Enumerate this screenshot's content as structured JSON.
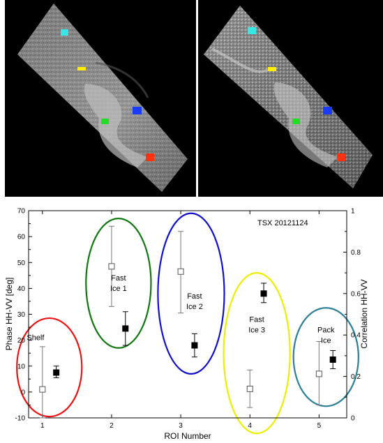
{
  "images": {
    "left_panel": {
      "description_icon": "sar-image-hh",
      "rois": [
        {
          "color": "#39e6e6"
        },
        {
          "color": "#ffee00"
        },
        {
          "color": "#1a3cff"
        },
        {
          "color": "#22dd22"
        },
        {
          "color": "#ff3311"
        }
      ]
    },
    "right_panel": {
      "description_icon": "sar-image-vv",
      "rois": [
        {
          "color": "#39e6e6"
        },
        {
          "color": "#ffee00"
        },
        {
          "color": "#1a3cff"
        },
        {
          "color": "#22dd22"
        },
        {
          "color": "#ff3311"
        }
      ]
    }
  },
  "chart_data": {
    "type": "scatter",
    "title": "TSX 20121124",
    "xlabel": "ROI Number",
    "ylabel": "Phase HH-VV [deg]",
    "y2label": "Correlation HH-VV",
    "xlim": [
      0.8,
      5.4
    ],
    "ylim": [
      -10,
      70
    ],
    "y2lim": [
      0,
      1
    ],
    "x_ticks": [
      "1",
      "2",
      "3",
      "4",
      "5"
    ],
    "y_ticks": [
      "-10",
      "0",
      "10",
      "20",
      "30",
      "40",
      "50",
      "60",
      "70"
    ],
    "y2_ticks": [
      "0",
      "0.2",
      "0.4",
      "0.6",
      "0.8",
      "1"
    ],
    "series": [
      {
        "marker": "open-square",
        "axis": "left",
        "points": [
          {
            "x": 1.0,
            "y": 1,
            "lo": -10,
            "hi": 17.5
          },
          {
            "x": 2.0,
            "y": 48.5,
            "lo": 33,
            "hi": 64
          },
          {
            "x": 3.0,
            "y": 46.5,
            "lo": 30.5,
            "hi": 62
          },
          {
            "x": 4.0,
            "y": 1.2,
            "lo": -6,
            "hi": 8.5
          },
          {
            "x": 5.0,
            "y": 7,
            "lo": -5,
            "hi": 19.5
          }
        ]
      },
      {
        "marker": "filled-square",
        "axis": "left",
        "points": [
          {
            "x": 1.2,
            "y": 7.5,
            "lo": 5.5,
            "hi": 10
          },
          {
            "x": 2.2,
            "y": 24.5,
            "lo": 18,
            "hi": 31
          },
          {
            "x": 3.2,
            "y": 18,
            "lo": 13.5,
            "hi": 22.5
          },
          {
            "x": 4.2,
            "y": 38,
            "lo": 34.5,
            "hi": 42
          },
          {
            "x": 5.2,
            "y": 12.5,
            "lo": 9,
            "hi": 16
          }
        ]
      }
    ],
    "groups": [
      {
        "lines": [
          "Shelf"
        ],
        "color": "#ee1111",
        "cx": 1.1,
        "cy": 9.5,
        "rx": 0.47,
        "ry": 19,
        "label_pos": [
          0.9,
          20
        ]
      },
      {
        "lines": [
          "Fast",
          "Ice 1"
        ],
        "color": "#117711",
        "cx": 2.1,
        "cy": 42,
        "rx": 0.47,
        "ry": 25,
        "label_pos": [
          2.1,
          43
        ]
      },
      {
        "lines": [
          "Fast",
          "Ice 2"
        ],
        "color": "#1111cc",
        "cx": 3.15,
        "cy": 38,
        "rx": 0.48,
        "ry": 31,
        "label_pos": [
          3.2,
          36
        ]
      },
      {
        "lines": [
          "Fast",
          "Ice 3"
        ],
        "color": "#eeee00",
        "cx": 4.1,
        "cy": 15,
        "rx": 0.48,
        "ry": 31,
        "label_pos": [
          4.1,
          27
        ]
      },
      {
        "lines": [
          "Pack",
          "Ice"
        ],
        "color": "#2b7f99",
        "cx": 5.1,
        "cy": 13.5,
        "rx": 0.47,
        "ry": 19,
        "label_pos": [
          5.1,
          23
        ]
      }
    ]
  }
}
